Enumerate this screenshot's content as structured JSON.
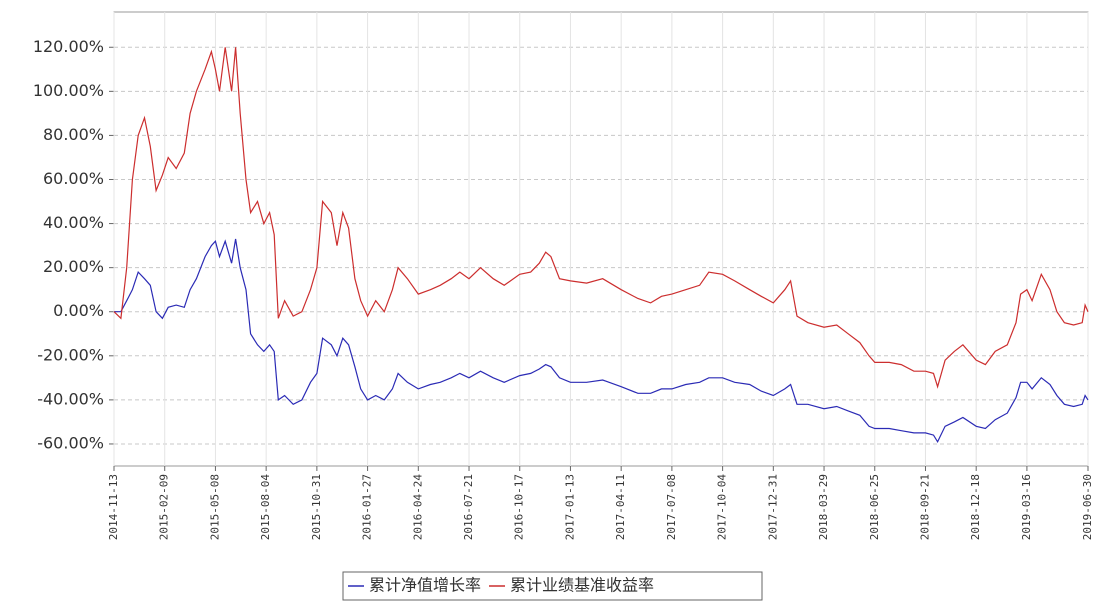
{
  "chart_data": {
    "type": "line",
    "x": [
      "2014-11-13",
      "2014-11-25",
      "2014-12-05",
      "2014-12-15",
      "2014-12-25",
      "2015-01-05",
      "2015-01-15",
      "2015-01-25",
      "2015-02-05",
      "2015-02-15",
      "2015-03-01",
      "2015-03-15",
      "2015-03-25",
      "2015-04-05",
      "2015-04-20",
      "2015-05-01",
      "2015-05-08",
      "2015-05-15",
      "2015-05-25",
      "2015-06-05",
      "2015-06-12",
      "2015-06-20",
      "2015-06-30",
      "2015-07-08",
      "2015-07-20",
      "2015-07-31",
      "2015-08-10",
      "2015-08-18",
      "2015-08-25",
      "2015-09-05",
      "2015-09-20",
      "2015-10-05",
      "2015-10-20",
      "2015-10-31",
      "2015-11-10",
      "2015-11-25",
      "2015-12-05",
      "2015-12-15",
      "2015-12-25",
      "2016-01-05",
      "2016-01-15",
      "2016-01-27",
      "2016-02-10",
      "2016-02-25",
      "2016-03-10",
      "2016-03-20",
      "2016-04-05",
      "2016-04-24",
      "2016-05-15",
      "2016-06-01",
      "2016-06-20",
      "2016-07-05",
      "2016-07-21",
      "2016-08-10",
      "2016-09-01",
      "2016-09-20",
      "2016-10-17",
      "2016-11-05",
      "2016-11-20",
      "2016-12-01",
      "2016-12-10",
      "2016-12-25",
      "2017-01-13",
      "2017-02-10",
      "2017-03-10",
      "2017-04-11",
      "2017-05-10",
      "2017-06-01",
      "2017-06-20",
      "2017-07-08",
      "2017-08-01",
      "2017-08-25",
      "2017-09-10",
      "2017-10-04",
      "2017-10-25",
      "2017-11-20",
      "2017-12-10",
      "2017-12-31",
      "2018-01-20",
      "2018-01-30",
      "2018-02-10",
      "2018-03-01",
      "2018-03-29",
      "2018-04-20",
      "2018-05-10",
      "2018-05-30",
      "2018-06-15",
      "2018-06-25",
      "2018-07-20",
      "2018-08-10",
      "2018-09-01",
      "2018-09-21",
      "2018-10-05",
      "2018-10-12",
      "2018-10-25",
      "2018-11-10",
      "2018-11-25",
      "2018-12-18",
      "2019-01-03",
      "2019-01-20",
      "2019-02-10",
      "2019-02-25",
      "2019-03-05",
      "2019-03-16",
      "2019-03-25",
      "2019-04-10",
      "2019-04-25",
      "2019-05-07",
      "2019-05-20",
      "2019-06-05",
      "2019-06-20",
      "2019-06-25",
      "2019-06-30"
    ],
    "series": [
      {
        "name": "累计净值增长率",
        "color": "#2b2bb5",
        "values": [
          0,
          0,
          5,
          10,
          18,
          15,
          12,
          0,
          -3,
          2,
          3,
          2,
          10,
          15,
          25,
          30,
          32,
          25,
          32,
          22,
          33,
          20,
          10,
          -10,
          -15,
          -18,
          -15,
          -18,
          -40,
          -38,
          -42,
          -40,
          -32,
          -28,
          -12,
          -15,
          -20,
          -12,
          -15,
          -25,
          -35,
          -40,
          -38,
          -40,
          -35,
          -28,
          -32,
          -35,
          -33,
          -32,
          -30,
          -28,
          -30,
          -27,
          -30,
          -32,
          -29,
          -28,
          -26,
          -24,
          -25,
          -30,
          -32,
          -32,
          -31,
          -34,
          -37,
          -37,
          -35,
          -35,
          -33,
          -32,
          -30,
          -30,
          -32,
          -33,
          -36,
          -38,
          -35,
          -33,
          -42,
          -42,
          -44,
          -43,
          -45,
          -47,
          -52,
          -53,
          -53,
          -54,
          -55,
          -55,
          -56,
          -59,
          -52,
          -50,
          -48,
          -52,
          -53,
          -49,
          -46,
          -39,
          -32,
          -32,
          -35,
          -30,
          -33,
          -38,
          -42,
          -43,
          -42,
          -38,
          -40
        ]
      },
      {
        "name": "累计业绩基准收益率",
        "color": "#cc2e2e",
        "values": [
          0,
          -3,
          20,
          60,
          80,
          88,
          75,
          55,
          62,
          70,
          65,
          72,
          90,
          100,
          110,
          118,
          110,
          100,
          120,
          100,
          120,
          90,
          60,
          45,
          50,
          40,
          45,
          35,
          -3,
          5,
          -2,
          0,
          10,
          20,
          50,
          45,
          30,
          45,
          38,
          15,
          5,
          -2,
          5,
          0,
          10,
          20,
          15,
          8,
          10,
          12,
          15,
          18,
          15,
          20,
          15,
          12,
          17,
          18,
          22,
          27,
          25,
          15,
          14,
          13,
          15,
          10,
          6,
          4,
          7,
          8,
          10,
          12,
          18,
          17,
          14,
          10,
          7,
          4,
          10,
          14,
          -2,
          -5,
          -7,
          -6,
          -10,
          -14,
          -20,
          -23,
          -23,
          -24,
          -27,
          -27,
          -28,
          -34,
          -22,
          -18,
          -15,
          -22,
          -24,
          -18,
          -15,
          -5,
          8,
          10,
          5,
          17,
          10,
          0,
          -5,
          -6,
          -5,
          3,
          0
        ]
      }
    ],
    "xlim": [
      "2014-11-13",
      "2019-06-30"
    ],
    "xticks": [
      "2014-11-13",
      "2015-02-09",
      "2015-05-08",
      "2015-08-04",
      "2015-10-31",
      "2016-01-27",
      "2016-04-24",
      "2016-07-21",
      "2016-10-17",
      "2017-01-13",
      "2017-04-11",
      "2017-07-08",
      "2017-10-04",
      "2017-12-31",
      "2018-03-29",
      "2018-06-25",
      "2018-09-21",
      "2018-12-18",
      "2019-03-16",
      "2019-06-30"
    ],
    "ylim": [
      -70,
      136
    ],
    "yticks": [
      {
        "value": -60,
        "label": "-60.00%"
      },
      {
        "value": -40,
        "label": "-40.00%"
      },
      {
        "value": -20,
        "label": "-20.00%"
      },
      {
        "value": 0,
        "label": "0.00%"
      },
      {
        "value": 20,
        "label": "20.00%"
      },
      {
        "value": 40,
        "label": "40.00%"
      },
      {
        "value": 60,
        "label": "60.00%"
      },
      {
        "value": 80,
        "label": "80.00%"
      },
      {
        "value": 100,
        "label": "100.00%"
      },
      {
        "value": 120,
        "label": "120.00%"
      }
    ],
    "grid": true
  }
}
